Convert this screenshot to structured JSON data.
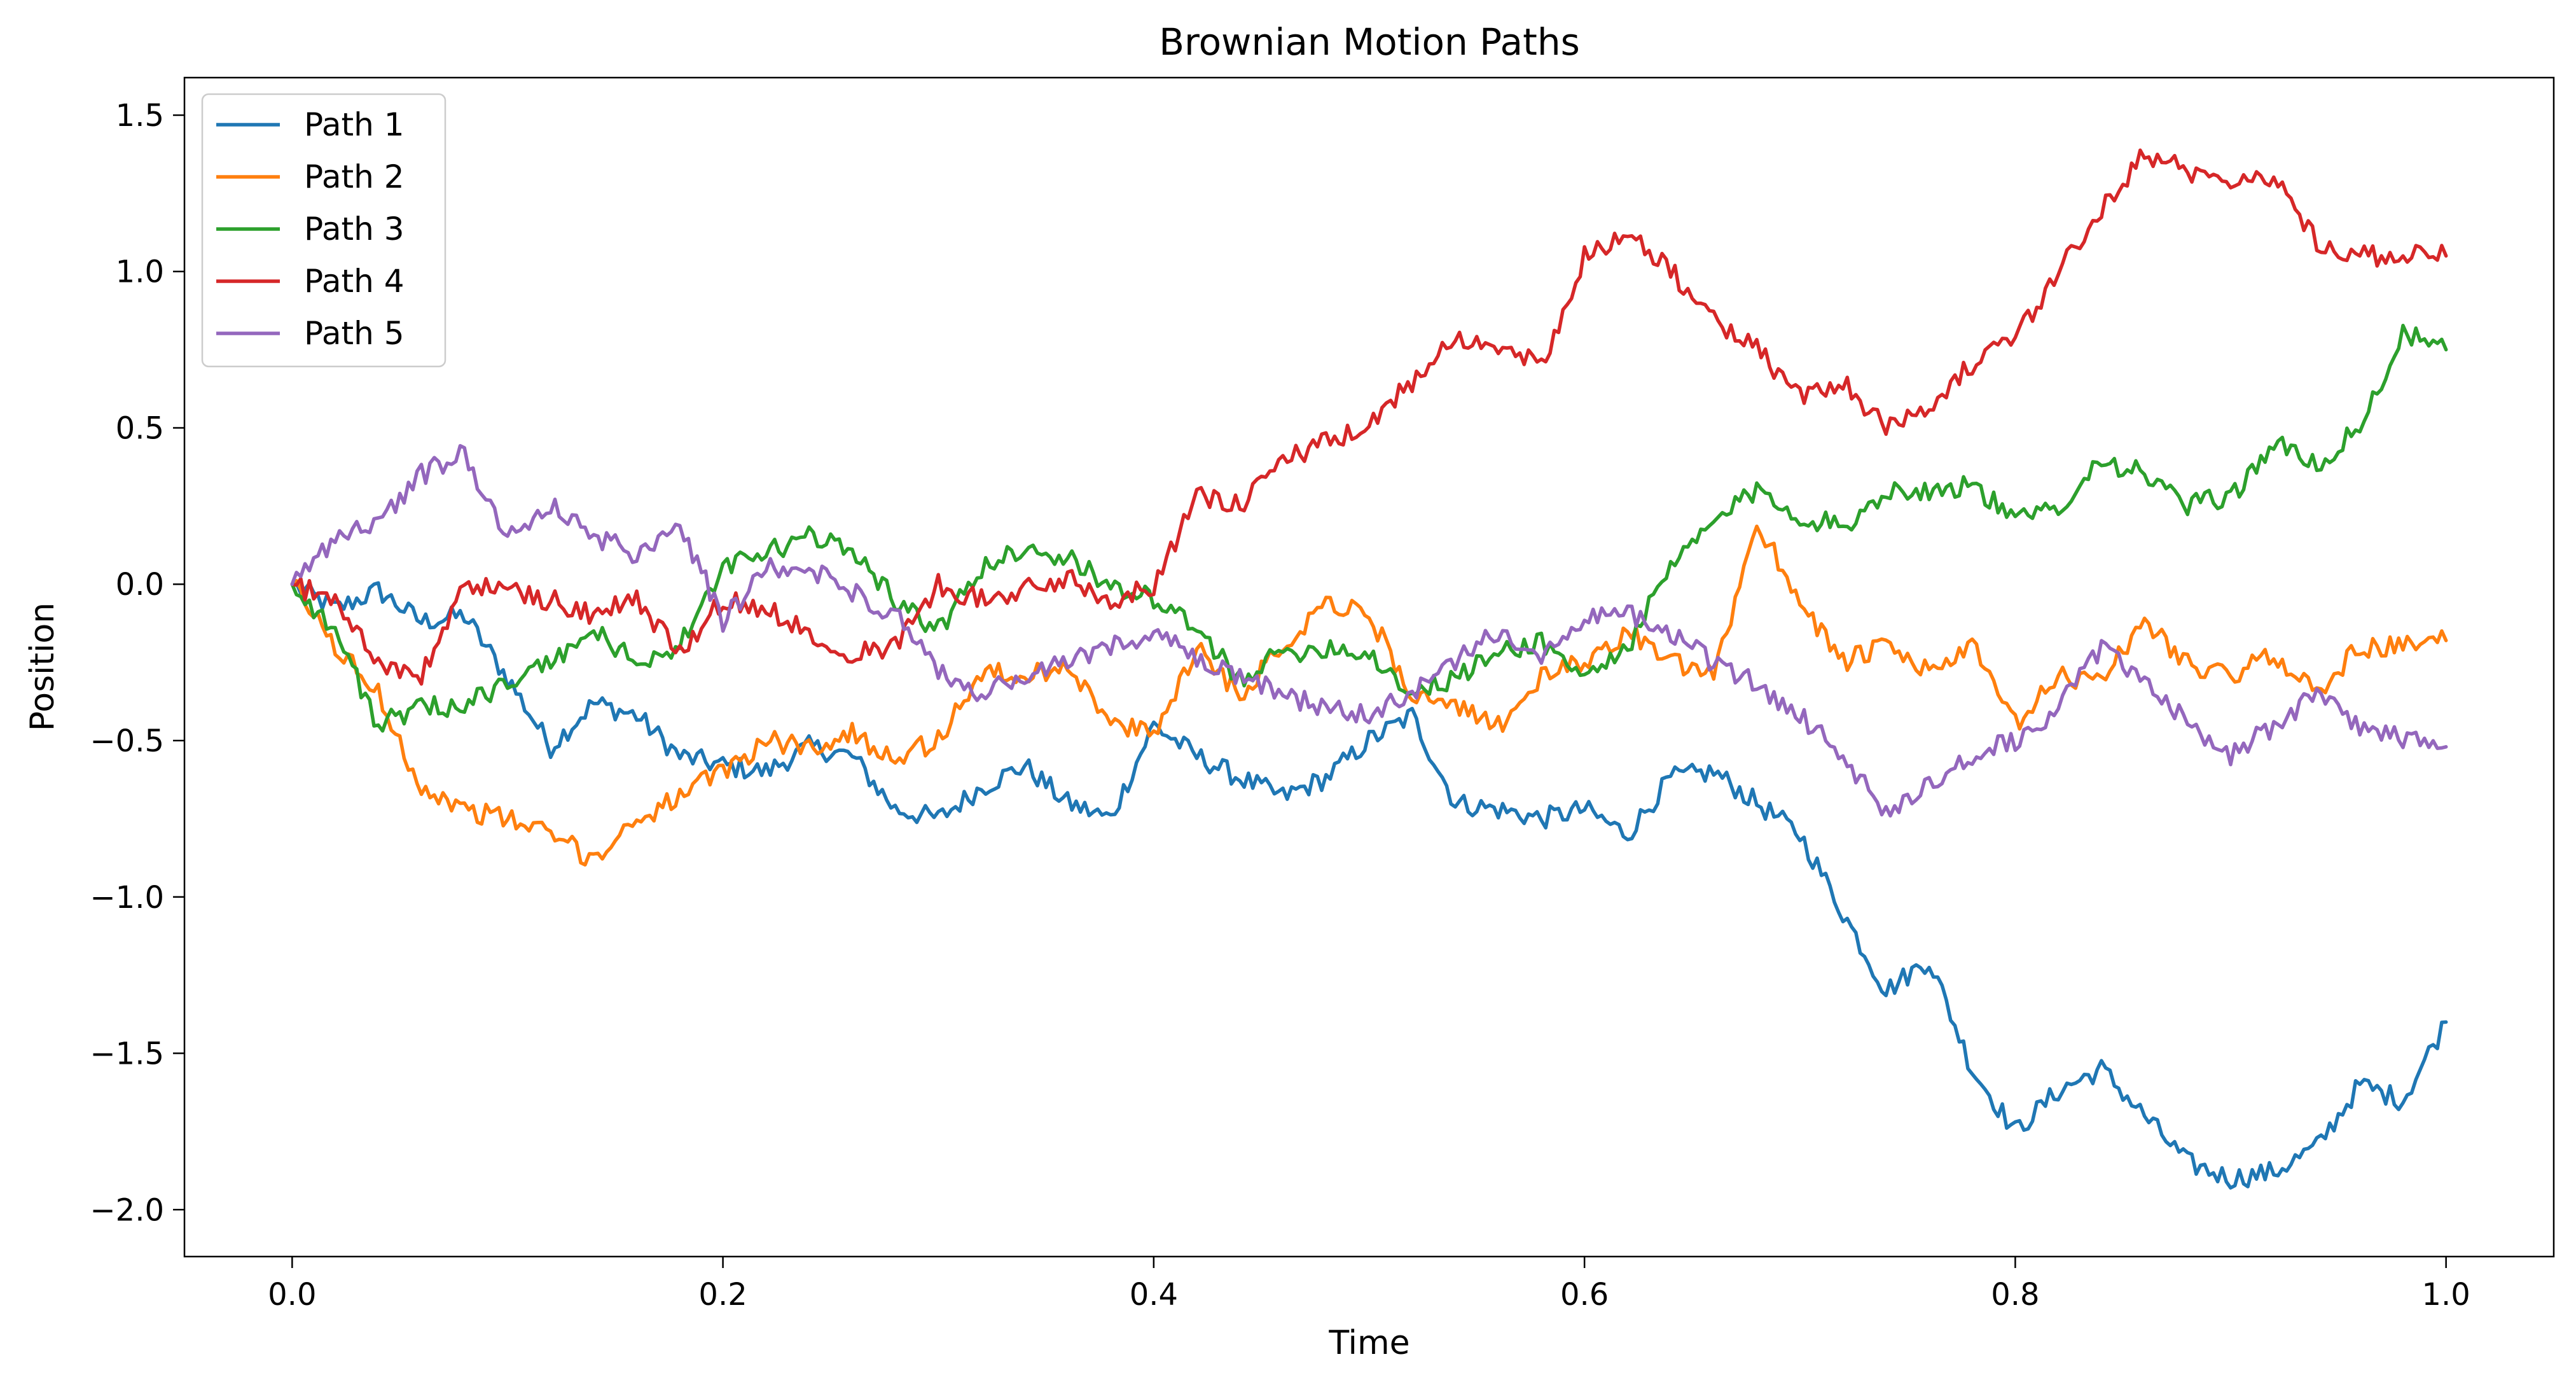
{
  "chart_data": {
    "type": "line",
    "title": "Brownian Motion Paths",
    "xlabel": "Time",
    "ylabel": "Position",
    "xlim": [
      -0.05,
      1.05
    ],
    "ylim": [
      -2.15,
      1.62
    ],
    "grid": false,
    "legend_position": "top-left",
    "x_ticks": [
      0.0,
      0.2,
      0.4,
      0.6,
      0.8,
      1.0
    ],
    "x_tick_labels": [
      "0.0",
      "0.2",
      "0.4",
      "0.6",
      "0.8",
      "1.0"
    ],
    "y_ticks": [
      1.5,
      1.0,
      0.5,
      0.0,
      -0.5,
      -1.0,
      -1.5,
      -2.0
    ],
    "y_tick_labels": [
      "1.5",
      "1.0",
      "0.5",
      "0.0",
      "−0.5",
      "−1.0",
      "−1.5",
      "−2.0"
    ],
    "x": [
      0.0,
      0.02,
      0.04,
      0.06,
      0.08,
      0.1,
      0.12,
      0.14,
      0.16,
      0.18,
      0.2,
      0.22,
      0.24,
      0.26,
      0.28,
      0.3,
      0.32,
      0.34,
      0.36,
      0.38,
      0.4,
      0.42,
      0.44,
      0.46,
      0.48,
      0.5,
      0.52,
      0.54,
      0.56,
      0.58,
      0.6,
      0.62,
      0.64,
      0.66,
      0.68,
      0.7,
      0.72,
      0.74,
      0.76,
      0.78,
      0.8,
      0.82,
      0.84,
      0.86,
      0.88,
      0.9,
      0.92,
      0.94,
      0.96,
      0.98,
      1.0
    ],
    "series": [
      {
        "name": "Path 1",
        "color": "#1f77b4",
        "values": [
          0.0,
          -0.08,
          -0.02,
          -0.12,
          -0.1,
          -0.3,
          -0.52,
          -0.38,
          -0.42,
          -0.55,
          -0.58,
          -0.6,
          -0.52,
          -0.55,
          -0.72,
          -0.75,
          -0.65,
          -0.58,
          -0.7,
          -0.75,
          -0.45,
          -0.55,
          -0.62,
          -0.68,
          -0.62,
          -0.5,
          -0.42,
          -0.7,
          -0.72,
          -0.75,
          -0.72,
          -0.8,
          -0.62,
          -0.6,
          -0.7,
          -0.8,
          -1.05,
          -1.3,
          -1.2,
          -1.55,
          -1.75,
          -1.62,
          -1.55,
          -1.7,
          -1.85,
          -1.9,
          -1.88,
          -1.8,
          -1.6,
          -1.65,
          -1.4
        ]
      },
      {
        "name": "Path 2",
        "color": "#ff7f0e",
        "values": [
          0.0,
          -0.2,
          -0.35,
          -0.65,
          -0.72,
          -0.75,
          -0.8,
          -0.88,
          -0.75,
          -0.68,
          -0.6,
          -0.5,
          -0.52,
          -0.48,
          -0.55,
          -0.5,
          -0.28,
          -0.3,
          -0.25,
          -0.45,
          -0.48,
          -0.2,
          -0.35,
          -0.2,
          -0.05,
          -0.1,
          -0.35,
          -0.4,
          -0.45,
          -0.3,
          -0.25,
          -0.15,
          -0.25,
          -0.3,
          0.2,
          -0.05,
          -0.25,
          -0.2,
          -0.28,
          -0.2,
          -0.45,
          -0.3,
          -0.3,
          -0.12,
          -0.25,
          -0.3,
          -0.22,
          -0.35,
          -0.2,
          -0.2,
          -0.18
        ]
      },
      {
        "name": "Path 3",
        "color": "#2ca02c",
        "values": [
          0.0,
          -0.15,
          -0.45,
          -0.4,
          -0.38,
          -0.32,
          -0.25,
          -0.15,
          -0.25,
          -0.2,
          0.05,
          0.1,
          0.15,
          0.12,
          -0.05,
          -0.15,
          0.05,
          0.12,
          0.08,
          0.0,
          -0.05,
          -0.15,
          -0.3,
          -0.22,
          -0.2,
          -0.22,
          -0.35,
          -0.3,
          -0.22,
          -0.18,
          -0.3,
          -0.2,
          0.05,
          0.2,
          0.3,
          0.22,
          0.18,
          0.3,
          0.3,
          0.32,
          0.2,
          0.25,
          0.4,
          0.35,
          0.25,
          0.28,
          0.45,
          0.38,
          0.5,
          0.8,
          0.75
        ]
      },
      {
        "name": "Path 4",
        "color": "#d62728",
        "values": [
          0.0,
          -0.05,
          -0.25,
          -0.3,
          0.0,
          -0.02,
          -0.05,
          -0.1,
          -0.05,
          -0.22,
          -0.05,
          -0.08,
          -0.15,
          -0.22,
          -0.2,
          0.0,
          -0.05,
          -0.02,
          0.02,
          -0.05,
          0.0,
          0.28,
          0.25,
          0.4,
          0.45,
          0.5,
          0.65,
          0.8,
          0.75,
          0.7,
          1.05,
          1.12,
          1.0,
          0.85,
          0.75,
          0.6,
          0.65,
          0.5,
          0.58,
          0.7,
          0.78,
          1.0,
          1.2,
          1.38,
          1.32,
          1.3,
          1.3,
          1.1,
          1.05,
          1.05,
          1.05
        ]
      },
      {
        "name": "Path 5",
        "color": "#9467bd",
        "values": [
          0.0,
          0.15,
          0.2,
          0.35,
          0.42,
          0.15,
          0.25,
          0.15,
          0.1,
          0.2,
          -0.12,
          0.05,
          0.05,
          -0.02,
          -0.1,
          -0.28,
          -0.35,
          -0.3,
          -0.25,
          -0.2,
          -0.15,
          -0.25,
          -0.3,
          -0.35,
          -0.4,
          -0.42,
          -0.35,
          -0.25,
          -0.15,
          -0.22,
          -0.1,
          -0.1,
          -0.15,
          -0.25,
          -0.32,
          -0.42,
          -0.55,
          -0.72,
          -0.65,
          -0.55,
          -0.5,
          -0.4,
          -0.2,
          -0.3,
          -0.45,
          -0.55,
          -0.45,
          -0.35,
          -0.45,
          -0.5,
          -0.52
        ]
      }
    ]
  }
}
